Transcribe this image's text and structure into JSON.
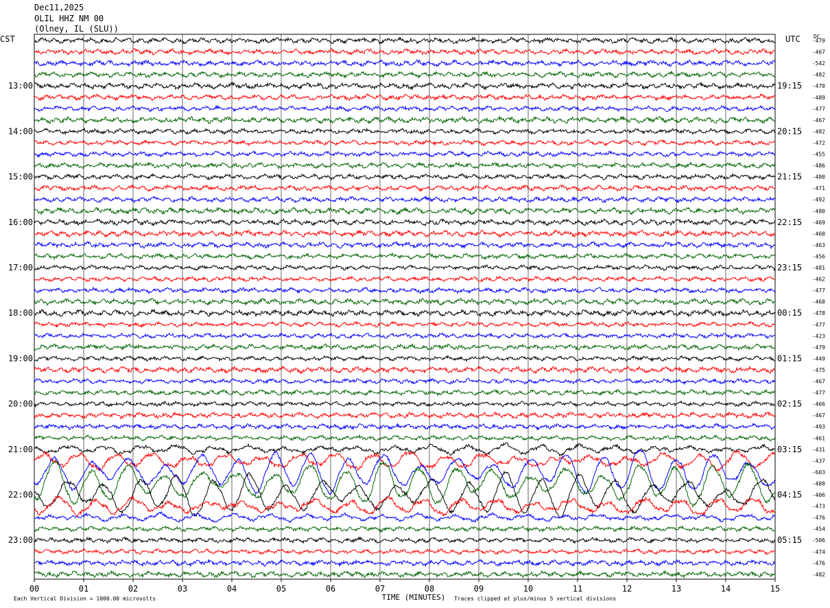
{
  "header": {
    "date": "Dec11,2025",
    "station": "OLIL HHZ NM 00",
    "location": "(Olney, IL (SLU))"
  },
  "left_corner_label": "CST",
  "right_corner_label": "UTC",
  "dc_header": "DC",
  "footer": {
    "left_note": "Each Vertical Division = 1000.00 microvolts",
    "right_note": "Traces clipped at plus/minus 5 vertical divisions"
  },
  "chart_data": {
    "type": "line",
    "xlabel": "TIME (MINUTES)",
    "xlim": [
      0,
      15
    ],
    "x_ticks": [
      "00",
      "01",
      "02",
      "03",
      "04",
      "05",
      "06",
      "07",
      "08",
      "09",
      "10",
      "11",
      "12",
      "13",
      "14",
      "15"
    ],
    "trace_colors": [
      "#000000",
      "#ff0000",
      "#0000ff",
      "#006400"
    ],
    "left_time_labels": [
      "13:00",
      "14:00",
      "15:00",
      "16:00",
      "17:00",
      "18:00",
      "19:00",
      "20:00",
      "21:00",
      "22:00",
      "23:00"
    ],
    "right_time_labels": [
      "19:15",
      "20:15",
      "21:15",
      "22:15",
      "23:15",
      "00:15",
      "01:15",
      "02:15",
      "03:15",
      "04:15",
      "05:15"
    ],
    "dc_values": [
      -479,
      -467,
      -542,
      -482,
      -470,
      -489,
      -477,
      -467,
      -482,
      -472,
      -455,
      -486,
      -480,
      -471,
      -492,
      -480,
      -469,
      -460,
      -463,
      -456,
      -481,
      -462,
      -477,
      -468,
      -478,
      -477,
      -423,
      -479,
      -449,
      -475,
      -467,
      -477,
      -466,
      -467,
      -493,
      -461,
      -431,
      -437,
      -603,
      -488,
      -406,
      -473,
      -476,
      -454,
      -506,
      -474,
      -476,
      -482
    ]
  }
}
